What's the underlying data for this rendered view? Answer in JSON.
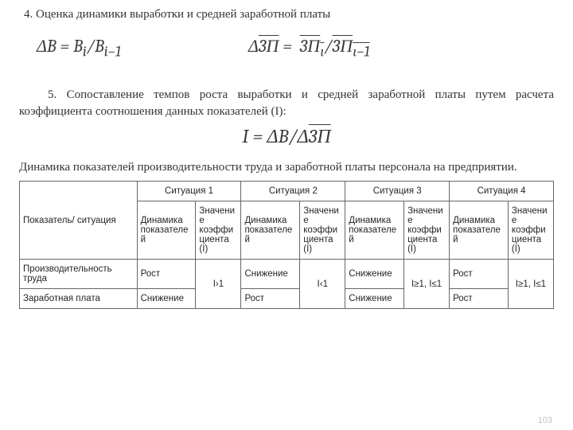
{
  "heading4": "4. Оценка динамики выработки и средней заработной платы",
  "formulas": {
    "f1_html": "ΔB = B<sub>i</sub>/B<sub>i−1</sub>",
    "f2_html": "Δ<span class=\"over\">3П</span> = &nbsp;<span class=\"over\">3П<sub>ι</sub></span>/<span class=\"over\">3П<sub>ι−1</sub></span>",
    "f3_html": "I = ΔB/Δ<span class=\"over\">3П</span>"
  },
  "para5": "5. Сопоставление темпов роста выработки и средней заработной платы путем расчета коэффициента соотношения данных показателей (I):",
  "para6": "Динамика показателей производительности труда и заработной платы персонала на предприятии.",
  "table": {
    "corner": "Показатель/ ситуация",
    "situations": [
      "Ситуация 1",
      "Ситуация 2",
      "Ситуация 3",
      "Ситуация 4"
    ],
    "sub_dyn": "Динамика показателей",
    "sub_coef": "Значение коэффициента (I)",
    "sub_coef_wrap": "Значение коэффициента (I)",
    "rows": [
      {
        "label": "Производительность труда",
        "c1": "Рост",
        "c2": "Снижение",
        "c3": "Снижение",
        "c4": "Рост"
      },
      {
        "label": "Заработная плата",
        "c1": "Снижение",
        "c2": "Рост",
        "c3": "Снижение",
        "c4": "Рост"
      }
    ],
    "coef1": "I›1",
    "coef2": "I‹1",
    "coef3": "I≥1, I≤1",
    "coef4": "I≥1, I≤1"
  },
  "pagenum": "103",
  "style": {
    "body_font": "Times New Roman",
    "table_font": "Arial",
    "text_color": "#333333",
    "table_border": "#666666",
    "pagenum_color": "#bfbfbf",
    "col_widths_pct": [
      22,
      11,
      8.5,
      11,
      8.5,
      11,
      8.5,
      11,
      8.5
    ]
  }
}
